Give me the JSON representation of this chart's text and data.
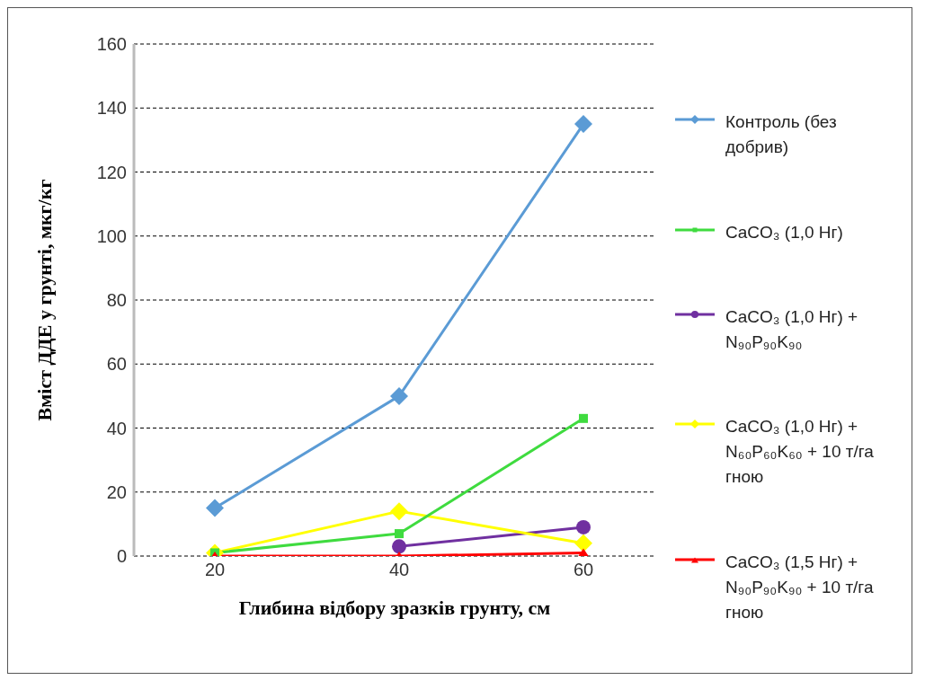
{
  "chart_data": {
    "type": "line",
    "xlabel": "Глибина відбору зразків грунту, см",
    "ylabel": "Вміст ДДЕ у грунті, мкг/кг",
    "categories": [
      "20",
      "40",
      "60"
    ],
    "series": [
      {
        "name": "Контроль (без добрив)",
        "color": "#5b9bd5",
        "marker": "diamond",
        "values": [
          15,
          50,
          135
        ]
      },
      {
        "name": "CaCO₃ (1,0 Нг)",
        "color": "#3fdb3f",
        "marker": "square",
        "values": [
          1,
          7,
          43
        ]
      },
      {
        "name": "CaCO₃ (1,0 Нг) + N₉₀P₉₀K₉₀",
        "color": "#7030a0",
        "marker": "circle",
        "values": [
          null,
          3,
          9
        ]
      },
      {
        "name": "CaCO₃ (1,0 Нг) + N₆₀P₆₀K₆₀ + 10 т/га гною",
        "color": "#ffff00",
        "marker": "diamond",
        "values": [
          1,
          14,
          4
        ]
      },
      {
        "name": "CaCO₃ (1,5 Нг) + N₉₀P₉₀K₉₀ + 10 т/га гною",
        "color": "#ff0000",
        "marker": "triangle",
        "values": [
          0,
          0,
          1
        ]
      }
    ],
    "ylim": [
      0,
      160
    ],
    "yticks": [
      0,
      20,
      40,
      60,
      80,
      100,
      120,
      140,
      160
    ],
    "grid": "y",
    "legend": "right",
    "line_style": "solid"
  }
}
